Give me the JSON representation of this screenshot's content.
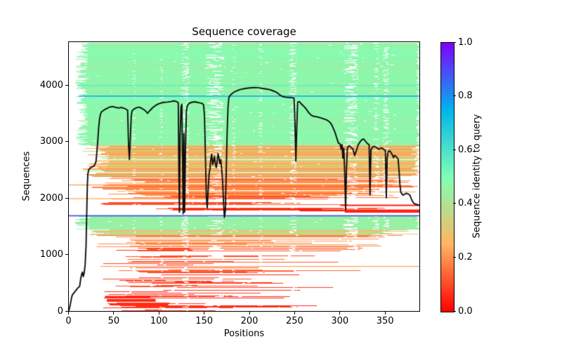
{
  "title": "Sequence coverage",
  "xlabel": "Positions",
  "ylabel": "Sequences",
  "axes": {
    "x_ticks": [
      0,
      50,
      100,
      150,
      200,
      250,
      300,
      350
    ],
    "y_ticks": [
      0,
      1000,
      2000,
      3000,
      4000
    ],
    "xlim": [
      0,
      388
    ],
    "ylim": [
      0,
      4764
    ]
  },
  "colorbar": {
    "label": "Sequence identity to query",
    "ticks": [
      "0.0",
      "0.2",
      "0.4",
      "0.6",
      "0.8",
      "1.0"
    ],
    "tick_values": [
      0.0,
      0.2,
      0.4,
      0.6,
      0.8,
      1.0
    ],
    "gradient_stops": [
      "#ff0000",
      "#ffb561",
      "#80ffb5",
      "#00b5eb",
      "#8000ff"
    ]
  },
  "chart_data": {
    "type": "msa-coverage",
    "identity_colormap": {
      "stops": [
        0,
        0.25,
        0.5,
        0.75,
        1
      ],
      "colors": [
        "#ff0000",
        "#ffb561",
        "#80ffb5",
        "#00b5eb",
        "#8000ff"
      ]
    },
    "coverage_line": {
      "color": "#0d0d0d",
      "width": 1.9,
      "points": [
        [
          0,
          20
        ],
        [
          1,
          80
        ],
        [
          2,
          160
        ],
        [
          3,
          250
        ],
        [
          4,
          300
        ],
        [
          6,
          340
        ],
        [
          8,
          380
        ],
        [
          10,
          420
        ],
        [
          12,
          450
        ],
        [
          13,
          570
        ],
        [
          14,
          650
        ],
        [
          15,
          700
        ],
        [
          16,
          620
        ],
        [
          17,
          690
        ],
        [
          18,
          820
        ],
        [
          19,
          1150
        ],
        [
          20,
          1900
        ],
        [
          20.5,
          2250
        ],
        [
          21,
          2430
        ],
        [
          22,
          2510
        ],
        [
          24,
          2545
        ],
        [
          26,
          2560
        ],
        [
          28,
          2575
        ],
        [
          30,
          2650
        ],
        [
          31,
          2820
        ],
        [
          32,
          3020
        ],
        [
          33,
          3260
        ],
        [
          34,
          3410
        ],
        [
          35,
          3490
        ],
        [
          36,
          3530
        ],
        [
          38,
          3555
        ],
        [
          40,
          3575
        ],
        [
          43,
          3600
        ],
        [
          46,
          3620
        ],
        [
          49,
          3625
        ],
        [
          52,
          3610
        ],
        [
          55,
          3600
        ],
        [
          58,
          3610
        ],
        [
          61,
          3595
        ],
        [
          63,
          3580
        ],
        [
          65,
          3560
        ],
        [
          66,
          2950
        ],
        [
          67,
          2690
        ],
        [
          68,
          3060
        ],
        [
          69,
          3470
        ],
        [
          70,
          3555
        ],
        [
          72,
          3580
        ],
        [
          75,
          3605
        ],
        [
          78,
          3615
        ],
        [
          80,
          3600
        ],
        [
          83,
          3570
        ],
        [
          85,
          3545
        ],
        [
          87,
          3505
        ],
        [
          89,
          3545
        ],
        [
          92,
          3595
        ],
        [
          95,
          3635
        ],
        [
          98,
          3665
        ],
        [
          101,
          3685
        ],
        [
          105,
          3700
        ],
        [
          109,
          3705
        ],
        [
          113,
          3715
        ],
        [
          116,
          3725
        ],
        [
          119,
          3715
        ],
        [
          121,
          3690
        ],
        [
          121.7,
          2400
        ],
        [
          122.3,
          1760
        ],
        [
          123,
          3100
        ],
        [
          124,
          3620
        ],
        [
          125,
          3665
        ],
        [
          125.7,
          2700
        ],
        [
          126.4,
          1730
        ],
        [
          127.2,
          3150
        ],
        [
          128,
          1760
        ],
        [
          129,
          2900
        ],
        [
          130,
          3550
        ],
        [
          131,
          3640
        ],
        [
          133,
          3685
        ],
        [
          136,
          3700
        ],
        [
          139,
          3710
        ],
        [
          142,
          3700
        ],
        [
          145,
          3690
        ],
        [
          147,
          3685
        ],
        [
          149,
          3655
        ],
        [
          150,
          3450
        ],
        [
          151,
          2750
        ],
        [
          152,
          2050
        ],
        [
          153,
          1835
        ],
        [
          154,
          2150
        ],
        [
          155,
          2420
        ],
        [
          156,
          2530
        ],
        [
          157,
          2700
        ],
        [
          158,
          2785
        ],
        [
          159,
          2600
        ],
        [
          160,
          2660
        ],
        [
          161,
          2745
        ],
        [
          162,
          2615
        ],
        [
          163,
          2545
        ],
        [
          164,
          2660
        ],
        [
          165,
          2795
        ],
        [
          166,
          2715
        ],
        [
          167,
          2615
        ],
        [
          168,
          2690
        ],
        [
          169,
          2510
        ],
        [
          170,
          2320
        ],
        [
          171,
          1930
        ],
        [
          172,
          1665
        ],
        [
          173,
          1780
        ],
        [
          174,
          2450
        ],
        [
          175,
          3150
        ],
        [
          176,
          3620
        ],
        [
          177,
          3790
        ],
        [
          179,
          3835
        ],
        [
          181,
          3862
        ],
        [
          184,
          3892
        ],
        [
          187,
          3912
        ],
        [
          190,
          3928
        ],
        [
          194,
          3942
        ],
        [
          198,
          3952
        ],
        [
          202,
          3958
        ],
        [
          206,
          3962
        ],
        [
          210,
          3956
        ],
        [
          214,
          3946
        ],
        [
          218,
          3936
        ],
        [
          222,
          3926
        ],
        [
          226,
          3902
        ],
        [
          229,
          3882
        ],
        [
          231,
          3862
        ],
        [
          233,
          3832
        ],
        [
          236,
          3806
        ],
        [
          239,
          3792
        ],
        [
          243,
          3786
        ],
        [
          246,
          3782
        ],
        [
          249,
          3772
        ],
        [
          250,
          3350
        ],
        [
          251,
          2662
        ],
        [
          252,
          3250
        ],
        [
          253,
          3705
        ],
        [
          255,
          3712
        ],
        [
          257,
          3672
        ],
        [
          259,
          3642
        ],
        [
          262,
          3592
        ],
        [
          265,
          3522
        ],
        [
          268,
          3472
        ],
        [
          271,
          3452
        ],
        [
          275,
          3442
        ],
        [
          279,
          3422
        ],
        [
          283,
          3402
        ],
        [
          286,
          3382
        ],
        [
          289,
          3342
        ],
        [
          291,
          3292
        ],
        [
          294,
          3182
        ],
        [
          296,
          3082
        ],
        [
          298,
          2982
        ],
        [
          300,
          2962
        ],
        [
          301,
          2872
        ],
        [
          302,
          2952
        ],
        [
          303,
          2712
        ],
        [
          304,
          2892
        ],
        [
          305,
          2452
        ],
        [
          306,
          1802
        ],
        [
          307,
          2552
        ],
        [
          308,
          2902
        ],
        [
          310,
          2932
        ],
        [
          312,
          2902
        ],
        [
          314,
          2882
        ],
        [
          316,
          2762
        ],
        [
          318,
          2852
        ],
        [
          320,
          2952
        ],
        [
          322,
          3002
        ],
        [
          324,
          3042
        ],
        [
          326,
          3052
        ],
        [
          328,
          3012
        ],
        [
          330,
          2972
        ],
        [
          332,
          2952
        ],
        [
          333,
          2062
        ],
        [
          334,
          2862
        ],
        [
          336,
          2912
        ],
        [
          338,
          2922
        ],
        [
          340,
          2902
        ],
        [
          342,
          2872
        ],
        [
          344,
          2882
        ],
        [
          346,
          2892
        ],
        [
          348,
          2872
        ],
        [
          350,
          2842
        ],
        [
          351,
          2012
        ],
        [
          352,
          2712
        ],
        [
          353,
          2832
        ],
        [
          355,
          2842
        ],
        [
          357,
          2792
        ],
        [
          359,
          2722
        ],
        [
          360,
          2762
        ],
        [
          362,
          2742
        ],
        [
          364,
          2702
        ],
        [
          365,
          2512
        ],
        [
          366,
          2262
        ],
        [
          367,
          2112
        ],
        [
          369,
          2062
        ],
        [
          371,
          2072
        ],
        [
          373,
          2092
        ],
        [
          375,
          2082
        ],
        [
          377,
          2062
        ],
        [
          379,
          1982
        ],
        [
          381,
          1922
        ],
        [
          383,
          1902
        ],
        [
          385,
          1892
        ],
        [
          388,
          1882
        ]
      ]
    },
    "hlines": [
      {
        "seq": 3810,
        "from": 11,
        "to": 389,
        "color": "#1fa9f0",
        "lw": 1.7
      },
      {
        "seq": 1695,
        "from": 0,
        "to": 389,
        "color": "#3c55e0",
        "lw": 1.7
      }
    ],
    "feature_rows": [
      {
        "seq": 4000,
        "from": 10,
        "to": 389,
        "identity": 0.57,
        "lw": 1.2
      },
      {
        "seq": 2240,
        "from": 0,
        "to": 140,
        "identity": 0.22,
        "lw": 1.3
      },
      {
        "seq": 1998,
        "from": 0,
        "to": 160,
        "identity": 0.24,
        "lw": 1.3
      },
      {
        "seq": 1880,
        "from": 300,
        "to": 389,
        "identity": 0.04,
        "lw": 2
      },
      {
        "seq": 1812,
        "from": 115,
        "to": 280,
        "identity": 0.05,
        "lw": 2.5
      },
      {
        "seq": 1790,
        "from": 255,
        "to": 389,
        "identity": 0.04,
        "lw": 2.5
      },
      {
        "seq": 1762,
        "from": 305,
        "to": 389,
        "identity": 0.05,
        "lw": 2
      },
      {
        "seq": 800,
        "from": 35,
        "to": 389,
        "identity": 0.22,
        "lw": 1.2
      },
      {
        "seq": 260,
        "from": 40,
        "to": 90,
        "identity": 0.05,
        "lw": 3
      },
      {
        "seq": 200,
        "from": 42,
        "to": 96,
        "identity": 0.05,
        "lw": 4
      },
      {
        "seq": 130,
        "from": 45,
        "to": 110,
        "identity": 0.06,
        "lw": 3
      }
    ],
    "msa_bands": [
      {
        "seq": [
          2950,
          4764
        ],
        "identity": [
          0.44,
          0.5
        ],
        "density": 1.0,
        "start": [
          7,
          22
        ],
        "end": [
          384,
          389
        ],
        "speckle": 1.2
      },
      {
        "seq": [
          2400,
          2950
        ],
        "identity": [
          0.19,
          0.3
        ],
        "density": 0.97,
        "start": [
          15,
          45
        ],
        "end": [
          378,
          389
        ],
        "speckle": 2,
        "green_mix": 0.12
      },
      {
        "seq": [
          2050,
          2400
        ],
        "identity": [
          0.14,
          0.24
        ],
        "density": 0.82,
        "start": [
          25,
          85
        ],
        "end": [
          295,
          389
        ],
        "speckle": 3
      },
      {
        "seq": [
          1700,
          2050
        ],
        "identity": [
          0.07,
          0.16
        ],
        "density": 0.48,
        "start": [
          30,
          120
        ],
        "end": [
          200,
          389
        ],
        "speckle": 3
      },
      {
        "seq": [
          1455,
          1692
        ],
        "identity": [
          0.42,
          0.48
        ],
        "density": 0.96,
        "start": [
          4,
          24
        ],
        "end": [
          384,
          389
        ],
        "speckle": 1.5
      },
      {
        "seq": [
          1360,
          1455
        ],
        "identity": [
          0.3,
          0.4
        ],
        "density": 0.88,
        "start": [
          15,
          50
        ],
        "end": [
          335,
          389
        ],
        "speckle": 2
      },
      {
        "seq": [
          1150,
          1360
        ],
        "identity": [
          0.14,
          0.24
        ],
        "density": 0.72,
        "start": [
          25,
          90
        ],
        "end": [
          185,
          389
        ],
        "speckle": 3
      },
      {
        "seq": [
          700,
          1150
        ],
        "identity": [
          0.07,
          0.16
        ],
        "density": 0.5,
        "start": [
          30,
          110
        ],
        "end": [
          120,
          335
        ],
        "speckle": 2
      },
      {
        "seq": [
          350,
          700
        ],
        "identity": [
          0.05,
          0.12
        ],
        "density": 0.45,
        "start": [
          35,
          120
        ],
        "end": [
          100,
          305
        ],
        "speckle": 2
      },
      {
        "seq": [
          60,
          350
        ],
        "identity": [
          0.04,
          0.1
        ],
        "density": 0.55,
        "start": [
          38,
          75
        ],
        "end": [
          85,
          280
        ],
        "speckle": 2
      },
      {
        "seq": [
          0,
          60
        ],
        "identity": [
          0.04,
          0.08
        ],
        "density": 0.18,
        "start": [
          40,
          90
        ],
        "end": [
          95,
          250
        ],
        "speckle": 1
      }
    ],
    "gap_columns": [
      {
        "pos": [
          124,
          133
        ],
        "strength": 0.55
      },
      {
        "pos": [
          150,
          172
        ],
        "strength": 0.5
      },
      {
        "pos": [
          243,
          252
        ],
        "strength": 0.45
      },
      {
        "pos": [
          303,
          320
        ],
        "strength": 0.55
      },
      {
        "pos": [
          336,
          343
        ],
        "strength": 0.3
      },
      {
        "pos": [
          347,
          354
        ],
        "strength": 0.5
      },
      {
        "pos": [
          209,
          214
        ],
        "strength": 0.22
      },
      {
        "pos": [
          180,
          184
        ],
        "strength": 0.18
      },
      {
        "pos": [
          100,
          104
        ],
        "strength": 0.15
      },
      {
        "pos": [
          70,
          74
        ],
        "strength": 0.2
      }
    ]
  }
}
